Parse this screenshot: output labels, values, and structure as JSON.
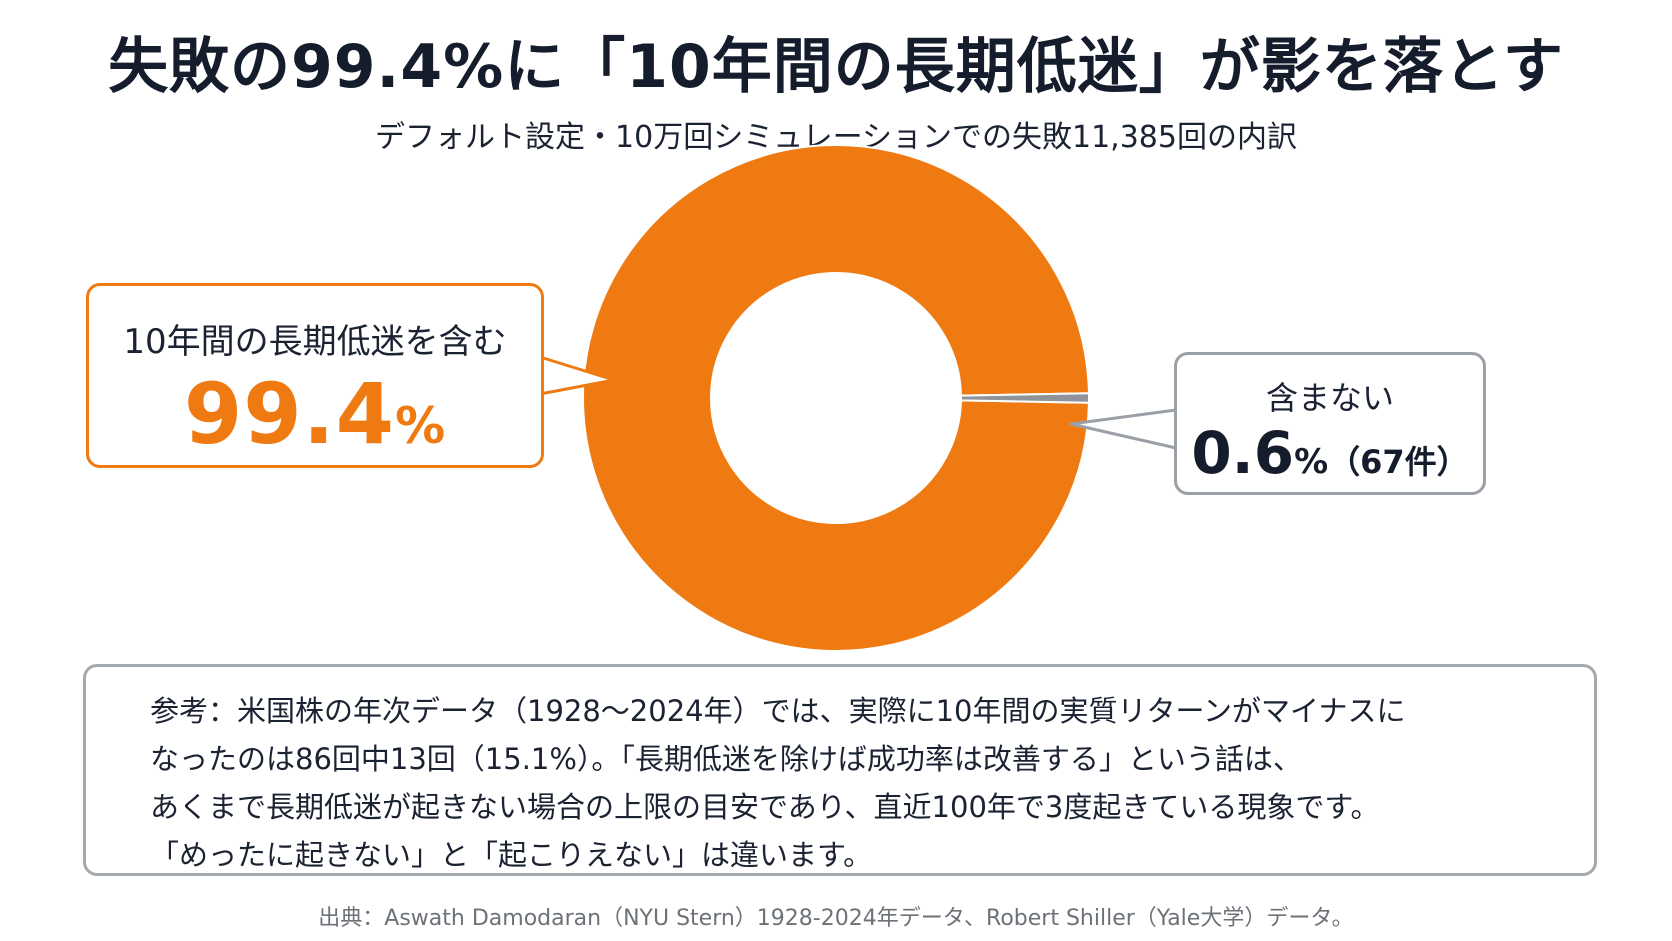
{
  "title": "失敗の99.4%に「10年間の長期低迷」が影を落とす",
  "subtitle": "デフォルト設定・10万回シミュレーションでの失敗11,385回の内訳",
  "colors": {
    "accent": "#f07a12",
    "minor": "#8e9499",
    "text": "#1b2232"
  },
  "chart_data": {
    "type": "pie",
    "donut": true,
    "total_failures": 11385,
    "series": [
      {
        "label": "10年間の長期低迷を含む",
        "value_pct": 99.4,
        "color": "#f07a12"
      },
      {
        "label": "含まない",
        "value_pct": 0.6,
        "count": 67,
        "color": "#8e9499"
      }
    ]
  },
  "callouts": {
    "left": {
      "label": "10年間の長期低迷を含む",
      "value": "99.4",
      "unit": "%"
    },
    "right": {
      "label": "含まない",
      "value": "0.6",
      "unit": "%",
      "count": "（67件）"
    }
  },
  "note": {
    "lines": [
      "参考：米国株の年次データ（1928〜2024年）では、実際に10年間の実質リターンがマイナスに",
      "なったのは86回中13回（15.1%）。「長期低迷を除けば成功率は改善する」という話は、",
      "あくまで長期低迷が起きない場合の上限の目安であり、直近100年で3度起きている現象です。",
      "「めったに起きない」と「起こりえない」は違います。"
    ]
  },
  "source": "出典：Aswath Damodaran（NYU Stern）1928-2024年データ、Robert Shiller（Yale大学）データ。"
}
